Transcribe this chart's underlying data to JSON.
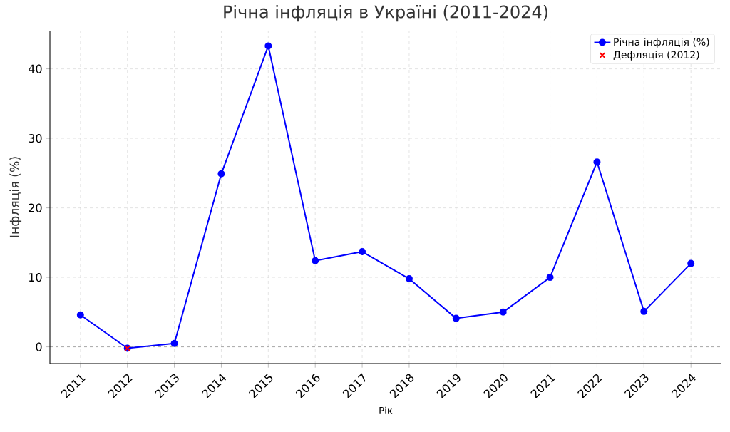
{
  "chart_data": {
    "type": "line",
    "title": "Річна інфляція в Україні (2011-2024)",
    "xlabel": "Рік",
    "ylabel": "Інфляція (%)",
    "x": [
      2011,
      2012,
      2013,
      2014,
      2015,
      2016,
      2017,
      2018,
      2019,
      2020,
      2021,
      2022,
      2023,
      2024
    ],
    "series": [
      {
        "name": "Річна інфляція (%)",
        "color": "#0000ff",
        "marker": "circle",
        "values": [
          4.6,
          -0.2,
          0.5,
          24.9,
          43.3,
          12.4,
          13.7,
          9.8,
          4.1,
          5.0,
          10.0,
          26.6,
          5.1,
          12.0
        ]
      },
      {
        "name": "Дефляція (2012)",
        "type": "scatter",
        "color": "#ff0000",
        "marker": "cross",
        "x": [
          2012
        ],
        "values": [
          -0.2
        ]
      }
    ],
    "xlim": [
      2010.35,
      2024.65
    ],
    "ylim": [
      -2.4,
      45.5
    ],
    "xticks": [
      2011,
      2012,
      2013,
      2014,
      2015,
      2016,
      2017,
      2018,
      2019,
      2020,
      2021,
      2022,
      2023,
      2024
    ],
    "yticks": [
      0,
      10,
      20,
      30,
      40
    ],
    "ref_lines": [
      {
        "axis": "y",
        "value": 0,
        "color": "#000000",
        "line_style": "dashed"
      }
    ],
    "grid": true,
    "legend": "top right"
  }
}
